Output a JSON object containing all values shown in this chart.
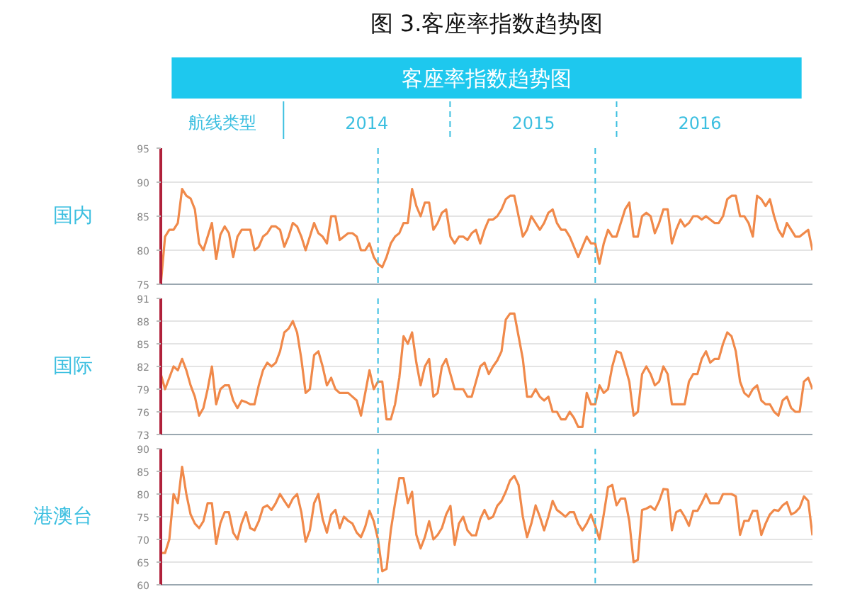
{
  "chart_data": [
    {
      "type": "line",
      "title": "图 3.客座率指数趋势图",
      "subtitle": "客座率指数趋势图",
      "annotations": [
        "航线类型",
        "2014",
        "2015",
        "2016"
      ],
      "ylabel": "国内",
      "categories": [
        null,
        null,
        null,
        null,
        null,
        null,
        null,
        null,
        null,
        null,
        null,
        null,
        null,
        null,
        null,
        null,
        null,
        null,
        null,
        null,
        null,
        null,
        null,
        null,
        null,
        null,
        null,
        null,
        null,
        null,
        null,
        null,
        null,
        null,
        null,
        null,
        null,
        null,
        null,
        null,
        null,
        null,
        null,
        null,
        null,
        null,
        null,
        null,
        null,
        null,
        null,
        null,
        null,
        null,
        null,
        null,
        null,
        null,
        null,
        null,
        null,
        null,
        null,
        null,
        null,
        null,
        null,
        null,
        null,
        null,
        null,
        null,
        null,
        null,
        null,
        null,
        null,
        null,
        null,
        null,
        null,
        null,
        null,
        null,
        null,
        null,
        null,
        null,
        null,
        null,
        null,
        null,
        null,
        null,
        null,
        null,
        null,
        null,
        null,
        null,
        null,
        null,
        null,
        null,
        null,
        null,
        null,
        null,
        null,
        null,
        null,
        null,
        null,
        null,
        null,
        null,
        null,
        null,
        null,
        null,
        null,
        null,
        null,
        null,
        null,
        null,
        null,
        null,
        null,
        null,
        null,
        null,
        null,
        null,
        null,
        null,
        null,
        null,
        null,
        null,
        null,
        null,
        null,
        null,
        null,
        null,
        null,
        null,
        null,
        null,
        null,
        null,
        null,
        null
      ],
      "series": [
        {
          "color": "#f0894a",
          "values": [
            75,
            82,
            83,
            83,
            84,
            89,
            88,
            87.6,
            86,
            81,
            80,
            82,
            84,
            78.7,
            82.3,
            83.5,
            82.5,
            79,
            82,
            83,
            83,
            83,
            80,
            80.5,
            82,
            82.5,
            83.5,
            83.5,
            83,
            80.5,
            82,
            84,
            83.5,
            82,
            80,
            82,
            84,
            82.5,
            82,
            81,
            85,
            85,
            81.5,
            82,
            82.5,
            82.5,
            82,
            80,
            80,
            81,
            79,
            78,
            77.5,
            79,
            81,
            82,
            82.5,
            84,
            84,
            89,
            86.5,
            85,
            87,
            87,
            83,
            84,
            85.5,
            86,
            82,
            81,
            82,
            82,
            81.5,
            82.5,
            83,
            81,
            83,
            84.5,
            84.5,
            85,
            86,
            87.5,
            88,
            88,
            85,
            82,
            83,
            85,
            84,
            83,
            84,
            85.5,
            86,
            84,
            83,
            83,
            82,
            80.5,
            79,
            80.5,
            82,
            81,
            81,
            78,
            81,
            83,
            82,
            82,
            84,
            86,
            87,
            82,
            82,
            85,
            85.5,
            85,
            82.5,
            84,
            86,
            86,
            81,
            83,
            84.5,
            83.5,
            84,
            85,
            85,
            84.5,
            85,
            84.5,
            84,
            84,
            85,
            87.5,
            88,
            88,
            85,
            85,
            84,
            82,
            88,
            87.5,
            86.5,
            87.5,
            85,
            83,
            82,
            84,
            83,
            82,
            82,
            82.5,
            83,
            80
          ]
        }
      ],
      "ylim": [
        75,
        95
      ],
      "yticks": [
        75,
        80,
        85,
        90,
        95
      ],
      "grid": "y",
      "tick_labels": "y"
    },
    {
      "type": "line",
      "ylabel": "国际",
      "categories": [
        null,
        null,
        null,
        null,
        null,
        null,
        null,
        null,
        null,
        null,
        null,
        null,
        null,
        null,
        null,
        null,
        null,
        null,
        null,
        null,
        null,
        null,
        null,
        null,
        null,
        null,
        null,
        null,
        null,
        null,
        null,
        null,
        null,
        null,
        null,
        null,
        null,
        null,
        null,
        null,
        null,
        null,
        null,
        null,
        null,
        null,
        null,
        null,
        null,
        null,
        null,
        null,
        null,
        null,
        null,
        null,
        null,
        null,
        null,
        null,
        null,
        null,
        null,
        null,
        null,
        null,
        null,
        null,
        null,
        null,
        null,
        null,
        null,
        null,
        null,
        null,
        null,
        null,
        null,
        null,
        null,
        null,
        null,
        null,
        null,
        null,
        null,
        null,
        null,
        null,
        null,
        null,
        null,
        null,
        null,
        null,
        null,
        null,
        null,
        null,
        null,
        null,
        null,
        null,
        null,
        null,
        null,
        null,
        null,
        null,
        null,
        null,
        null,
        null,
        null,
        null,
        null,
        null,
        null,
        null,
        null,
        null,
        null,
        null,
        null,
        null,
        null,
        null,
        null,
        null,
        null,
        null,
        null,
        null,
        null,
        null,
        null,
        null,
        null,
        null,
        null,
        null,
        null,
        null,
        null,
        null,
        null,
        null,
        null,
        null,
        null,
        null,
        null,
        null
      ],
      "series": [
        {
          "color": "#f0894a",
          "values": [
            81,
            79,
            80.5,
            82,
            81.5,
            83,
            81.5,
            79.5,
            78,
            75.5,
            76.5,
            79,
            82,
            77,
            79,
            79.5,
            79.5,
            77.5,
            76.5,
            77.5,
            77.3,
            77,
            77,
            79.5,
            81.5,
            82.5,
            82,
            82.5,
            84,
            86.5,
            87,
            88,
            86.5,
            83,
            78.5,
            79,
            83.5,
            84,
            82,
            79.5,
            80.5,
            79,
            78.5,
            78.5,
            78.5,
            78,
            77.5,
            75.5,
            78.5,
            81.5,
            79,
            80,
            80,
            75,
            75,
            77,
            80.5,
            86,
            85,
            86.5,
            82.5,
            79.5,
            82,
            83,
            78,
            78.5,
            82,
            83,
            81,
            79,
            79,
            79,
            78,
            78,
            80,
            82,
            82.5,
            81,
            82,
            82.8,
            84,
            88.2,
            89,
            89,
            86,
            83,
            78,
            78,
            79,
            78,
            77.5,
            78,
            76,
            76,
            75,
            75,
            76,
            75.2,
            74,
            74,
            78.5,
            77,
            77,
            79.5,
            78.5,
            79,
            82,
            84,
            83.8,
            82,
            80,
            75.5,
            76,
            81,
            82,
            81,
            79.5,
            80,
            82,
            81,
            77,
            77,
            77,
            77,
            80,
            81,
            81,
            83,
            84,
            82.5,
            83,
            83,
            85,
            86.5,
            86,
            84,
            80,
            78.5,
            78,
            79,
            79.5,
            77.5,
            77,
            77,
            76,
            75.5,
            77.5,
            78,
            76.5,
            76,
            76,
            80,
            80.5,
            79
          ]
        }
      ],
      "ylim": [
        73,
        91
      ],
      "yticks": [
        73,
        76,
        79,
        82,
        85,
        88,
        91
      ],
      "grid": "y",
      "tick_labels": "y"
    },
    {
      "type": "line",
      "ylabel": "港澳台",
      "categories": [
        null,
        null,
        null,
        null,
        null,
        null,
        null,
        null,
        null,
        null,
        null,
        null,
        null,
        null,
        null,
        null,
        null,
        null,
        null,
        null,
        null,
        null,
        null,
        null,
        null,
        null,
        null,
        null,
        null,
        null,
        null,
        null,
        null,
        null,
        null,
        null,
        null,
        null,
        null,
        null,
        null,
        null,
        null,
        null,
        null,
        null,
        null,
        null,
        null,
        null,
        null,
        null,
        null,
        null,
        null,
        null,
        null,
        null,
        null,
        null,
        null,
        null,
        null,
        null,
        null,
        null,
        null,
        null,
        null,
        null,
        null,
        null,
        null,
        null,
        null,
        null,
        null,
        null,
        null,
        null,
        null,
        null,
        null,
        null,
        null,
        null,
        null,
        null,
        null,
        null,
        null,
        null,
        null,
        null,
        null,
        null,
        null,
        null,
        null,
        null,
        null,
        null,
        null,
        null,
        null,
        null,
        null,
        null,
        null,
        null,
        null,
        null,
        null,
        null,
        null,
        null,
        null,
        null,
        null,
        null,
        null,
        null,
        null,
        null,
        null,
        null,
        null,
        null,
        null,
        null,
        null,
        null,
        null,
        null,
        null,
        null,
        null,
        null,
        null,
        null,
        null,
        null,
        null,
        null,
        null,
        null,
        null,
        null,
        null,
        null,
        null,
        null,
        null,
        null
      ],
      "series": [
        {
          "color": "#f0894a",
          "values": [
            67,
            67,
            70,
            80,
            78,
            86,
            80,
            75.5,
            73.5,
            72.5,
            74,
            78,
            78,
            69,
            73.6,
            76,
            76,
            71.5,
            70,
            73.6,
            76,
            72.5,
            72,
            74,
            77,
            77.5,
            76.5,
            78,
            80,
            78.5,
            77.1,
            79,
            80,
            76,
            69.5,
            72,
            78,
            80,
            74.5,
            71.5,
            75.5,
            76.5,
            72.5,
            75,
            74.1,
            73.5,
            71.5,
            70.5,
            72.8,
            76.3,
            74,
            70,
            63,
            63.5,
            72,
            78,
            83.5,
            83.5,
            78,
            80.5,
            71,
            68,
            70.5,
            74,
            70,
            71,
            72.5,
            75.5,
            77.4,
            68.8,
            73.5,
            75,
            72,
            70.9,
            70.9,
            74.5,
            76.5,
            74.5,
            75,
            77.4,
            78.5,
            80.5,
            83,
            84,
            82,
            75,
            70.5,
            73.5,
            77.5,
            75,
            72,
            75,
            78.5,
            76.5,
            75.8,
            75,
            76,
            76,
            73.5,
            72,
            73.5,
            75.5,
            73,
            70,
            75.5,
            81.5,
            82,
            77.5,
            79,
            79,
            74,
            65,
            65.5,
            76.5,
            76.8,
            77.3,
            76.5,
            78.4,
            81.1,
            81,
            72,
            76,
            76.5,
            75,
            73,
            76.3,
            76.3,
            78,
            80,
            78,
            78,
            78,
            80,
            80,
            80,
            79.5,
            71,
            74.1,
            74.1,
            76.3,
            76.3,
            71,
            73.5,
            75.5,
            76.5,
            76.3,
            77.5,
            78.2,
            75.5,
            76,
            77,
            79.5,
            78.5,
            70.9
          ]
        }
      ],
      "ylim": [
        60,
        90
      ],
      "yticks": [
        60,
        65,
        70,
        75,
        80,
        85,
        90
      ],
      "grid": "y",
      "tick_labels": "y"
    }
  ]
}
